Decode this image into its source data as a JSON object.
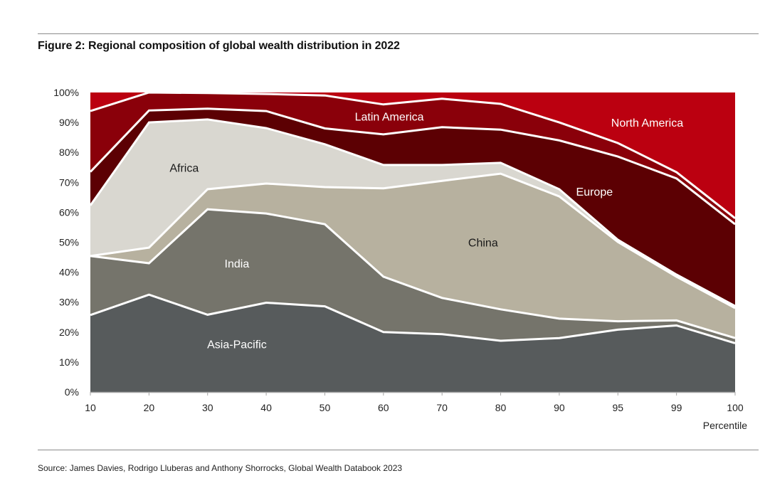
{
  "title": "Figure 2: Regional composition of global wealth distribution in 2022",
  "source": "Source: James Davies, Rodrigo Lluberas and Anthony Shorrocks, Global Wealth Databook 2023",
  "chart_data": {
    "type": "area",
    "stacked": true,
    "normalized": true,
    "title": "Figure 2: Regional composition of global wealth distribution in 2022",
    "xlabel": "Percentile",
    "ylabel": "",
    "categories": [
      "10",
      "20",
      "30",
      "40",
      "50",
      "60",
      "70",
      "80",
      "90",
      "95",
      "99",
      "100"
    ],
    "ylim": [
      0,
      100
    ],
    "yticks": [
      "0%",
      "10%",
      "20%",
      "30%",
      "40%",
      "50%",
      "60%",
      "70%",
      "80%",
      "90%",
      "100%"
    ],
    "grid": false,
    "legend": "inline labels",
    "series": [
      {
        "name": "Asia-Pacific",
        "color": "#575b5c",
        "label_color": "#ffffff",
        "values": [
          25.7,
          32.5,
          25.8,
          29.8,
          28.6,
          20.0,
          19.3,
          17.1,
          18.0,
          20.8,
          22.2,
          16.3
        ]
      },
      {
        "name": "India",
        "color": "#75746b",
        "label_color": "#ffffff",
        "values": [
          19.7,
          10.5,
          35.2,
          29.8,
          27.4,
          18.5,
          12.1,
          10.5,
          6.5,
          2.8,
          1.7,
          1.7
        ]
      },
      {
        "name": "China",
        "color": "#b7b19f",
        "label_color": "#1a1a1a",
        "values": [
          0.0,
          5.2,
          6.7,
          10.0,
          12.4,
          29.5,
          39.1,
          45.3,
          40.8,
          26.5,
          14.6,
          10.0
        ]
      },
      {
        "name": "Africa",
        "color": "#d9d7d0",
        "label_color": "#1a1a1a",
        "values": [
          16.9,
          41.8,
          23.3,
          18.5,
          14.3,
          7.8,
          5.3,
          3.6,
          2.4,
          0.7,
          0.7,
          0.7
        ]
      },
      {
        "name": "Europe",
        "color": "#5c0003",
        "label_color": "#ffffff",
        "values": [
          11.2,
          4.0,
          3.6,
          5.7,
          5.3,
          10.2,
          12.6,
          11.1,
          16.3,
          27.8,
          32.1,
          27.3
        ]
      },
      {
        "name": "Latin America",
        "color": "#8a000a",
        "label_color": "#ffffff",
        "values": [
          20.3,
          6.0,
          5.2,
          5.7,
          11.0,
          10.0,
          9.5,
          8.6,
          6.0,
          4.5,
          2.1,
          2.0
        ]
      },
      {
        "name": "North America",
        "color": "#bb0010",
        "label_color": "#ffffff",
        "values": [
          6.2,
          0.0,
          0.2,
          0.5,
          1.0,
          4.0,
          2.1,
          3.8,
          10.0,
          16.9,
          26.6,
          42.0
        ]
      }
    ],
    "annotations": [
      {
        "text": "Asia-Pacific",
        "series": "Asia-Pacific",
        "at_category": "35",
        "at_value": 16
      },
      {
        "text": "India",
        "series": "India",
        "at_category": "35",
        "at_value": 43
      },
      {
        "text": "China",
        "series": "China",
        "at_category": "77",
        "at_value": 50
      },
      {
        "text": "Africa",
        "series": "Africa",
        "at_category": "26",
        "at_value": 75
      },
      {
        "text": "Europe",
        "series": "Europe",
        "at_category": "93",
        "at_value": 67
      },
      {
        "text": "Latin America",
        "series": "Latin America",
        "at_category": "61",
        "at_value": 92
      },
      {
        "text": "North America",
        "series": "North America",
        "at_category": "97",
        "at_value": 90
      }
    ]
  }
}
